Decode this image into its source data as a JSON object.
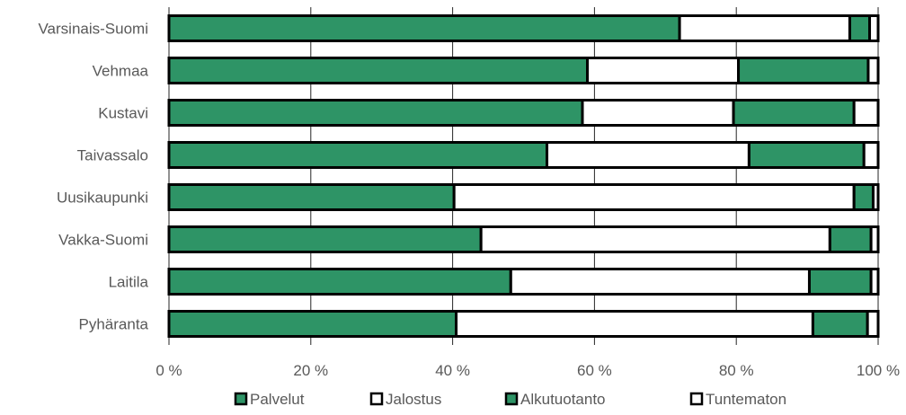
{
  "chart_data": {
    "type": "bar",
    "orientation": "horizontal",
    "stacked": true,
    "categories": [
      "Varsinais-Suomi",
      "Vehmaa",
      "Kustavi",
      "Taivassalo",
      "Uusikaupunki",
      "Vakka-Suomi",
      "Laitila",
      "Pyhäranta"
    ],
    "series": [
      {
        "name": "Palvelut",
        "color": "#2e9466",
        "values": [
          72.0,
          59.0,
          58.3,
          53.3,
          40.2,
          44.0,
          48.2,
          40.5
        ]
      },
      {
        "name": "Jalostus",
        "color": "#ffffff",
        "values": [
          24.0,
          21.3,
          21.3,
          28.5,
          56.4,
          49.2,
          42.1,
          50.3
        ]
      },
      {
        "name": "Alkutuotanto",
        "color": "#2e9466",
        "values": [
          2.8,
          18.3,
          17.0,
          16.2,
          2.7,
          5.8,
          8.7,
          7.7
        ]
      },
      {
        "name": "Tuntematon",
        "color": "#ffffff",
        "values": [
          1.2,
          1.4,
          3.4,
          2.0,
          0.7,
          1.0,
          1.0,
          1.5
        ]
      }
    ],
    "xlim": [
      0,
      100
    ],
    "x_ticks": [
      "0 %",
      "20 %",
      "40 %",
      "60 %",
      "80 %",
      "100 %"
    ],
    "grid": true,
    "legend_position": "bottom"
  }
}
